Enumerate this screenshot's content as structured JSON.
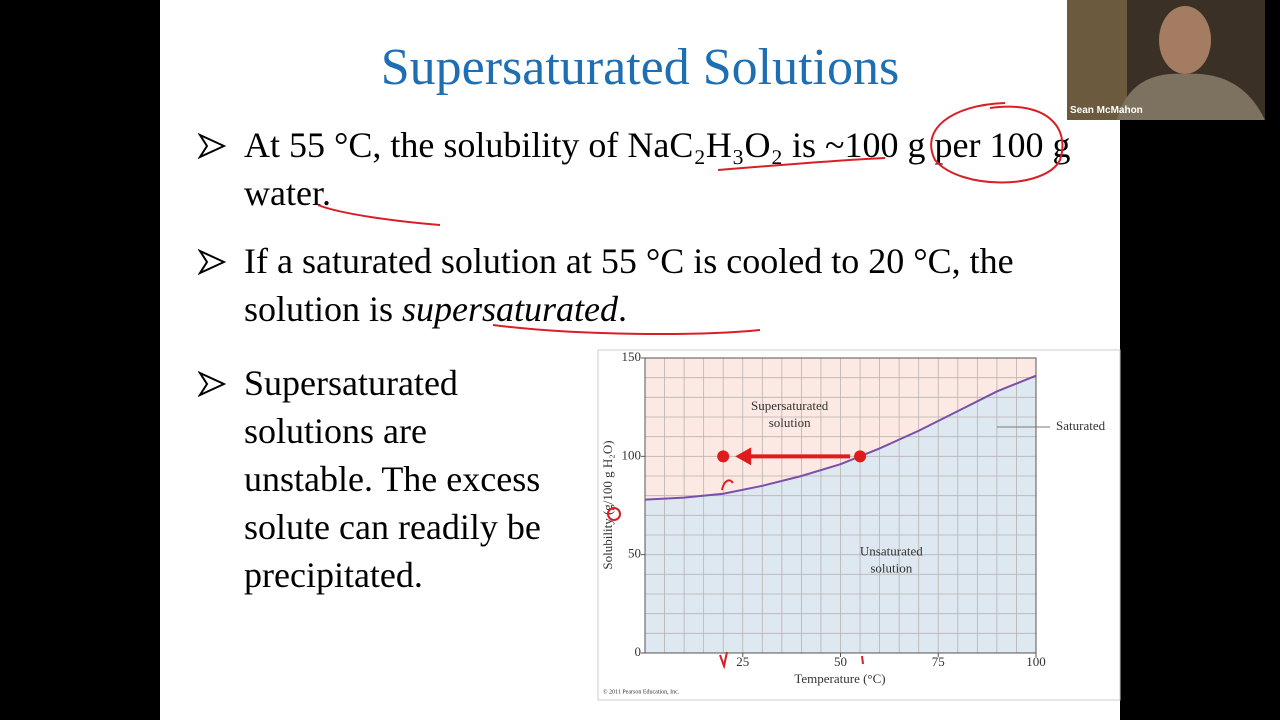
{
  "slide": {
    "title": "Supersaturated Solutions",
    "bullets": [
      [
        "At 55 °C, the solubility of NaC₂H₃O₂ is ~100 g per 100 g water."
      ],
      [
        "If a saturated solution at 55 °C is cooled to 20 °C, the solution is ",
        "supersaturated",
        "."
      ],
      [
        "Supersaturated solutions are unstable. The excess solute can readily be precipitated."
      ]
    ]
  },
  "chart_data": {
    "type": "line",
    "x_label": "Temperature (°C)",
    "y_label": "Solubility (g/100 g H₂O)",
    "x": [
      0,
      10,
      20,
      30,
      40,
      50,
      60,
      70,
      80,
      90,
      100
    ],
    "series": [
      {
        "name": "Saturated",
        "color": "#7b4fa8",
        "values": [
          78,
          79,
          81,
          85,
          90,
          96,
          104,
          113,
          123,
          133,
          141
        ]
      }
    ],
    "markers": {
      "x": [
        20,
        55
      ],
      "values": [
        100,
        100
      ],
      "color": "#e01b1b"
    },
    "xlim": [
      0,
      100
    ],
    "xticks": [
      25,
      50,
      75,
      100
    ],
    "ylim": [
      0,
      150
    ],
    "yticks": [
      0,
      50,
      100,
      150
    ],
    "minor_xticks": [
      0,
      5,
      10,
      15,
      20,
      25,
      30,
      35,
      40,
      45,
      50,
      55,
      60,
      65,
      70,
      75,
      80,
      85,
      90,
      95,
      100
    ],
    "minor_yticks": [
      0,
      10,
      20,
      30,
      40,
      50,
      60,
      70,
      80,
      90,
      100,
      110,
      120,
      130,
      140,
      150
    ],
    "grid": true,
    "annotations": [
      [
        "Supersaturated",
        "solution"
      ],
      [
        "Unsaturated",
        "solution"
      ]
    ],
    "credit": "© 2011 Pearson Education, Inc."
  },
  "video": {
    "participant_name": "Sean McMahon"
  }
}
